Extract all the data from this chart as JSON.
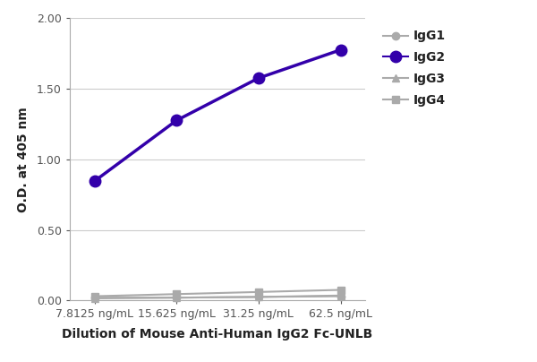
{
  "x_labels": [
    "7.8125 ng/mL",
    "15.625 ng/mL",
    "31.25 ng/mL",
    "62.5 ng/mL"
  ],
  "x_positions": [
    0,
    1,
    2,
    3
  ],
  "series": {
    "IgG1": {
      "values": [
        0.02,
        0.02,
        0.025,
        0.03
      ],
      "color": "#aaaaaa",
      "marker": "o",
      "markersize": 6,
      "linewidth": 1.5,
      "zorder": 2
    },
    "IgG2": {
      "values": [
        0.845,
        1.275,
        1.575,
        1.775
      ],
      "color": "#3300aa",
      "marker": "o",
      "markersize": 9,
      "linewidth": 2.5,
      "zorder": 4
    },
    "IgG3": {
      "values": [
        0.015,
        0.02,
        0.025,
        0.035
      ],
      "color": "#aaaaaa",
      "marker": "^",
      "markersize": 6,
      "linewidth": 1.5,
      "zorder": 3
    },
    "IgG4": {
      "values": [
        0.03,
        0.045,
        0.06,
        0.075
      ],
      "color": "#aaaaaa",
      "marker": "s",
      "markersize": 6,
      "linewidth": 1.5,
      "zorder": 1
    }
  },
  "xlabel": "Dilution of Mouse Anti-Human IgG2 Fc-UNLB",
  "ylabel": "O.D. at 405 nm",
  "ylim": [
    0.0,
    2.0
  ],
  "yticks": [
    0.0,
    0.5,
    1.0,
    1.5,
    2.0
  ],
  "ytick_labels": [
    "0.00",
    "0.50",
    "1.00",
    "1.50",
    "2.00"
  ],
  "background_color": "#ffffff",
  "grid_color": "#cccccc",
  "legend_order": [
    "IgG1",
    "IgG2",
    "IgG3",
    "IgG4"
  ],
  "axis_fontsize": 10,
  "tick_fontsize": 9,
  "legend_fontsize": 10
}
